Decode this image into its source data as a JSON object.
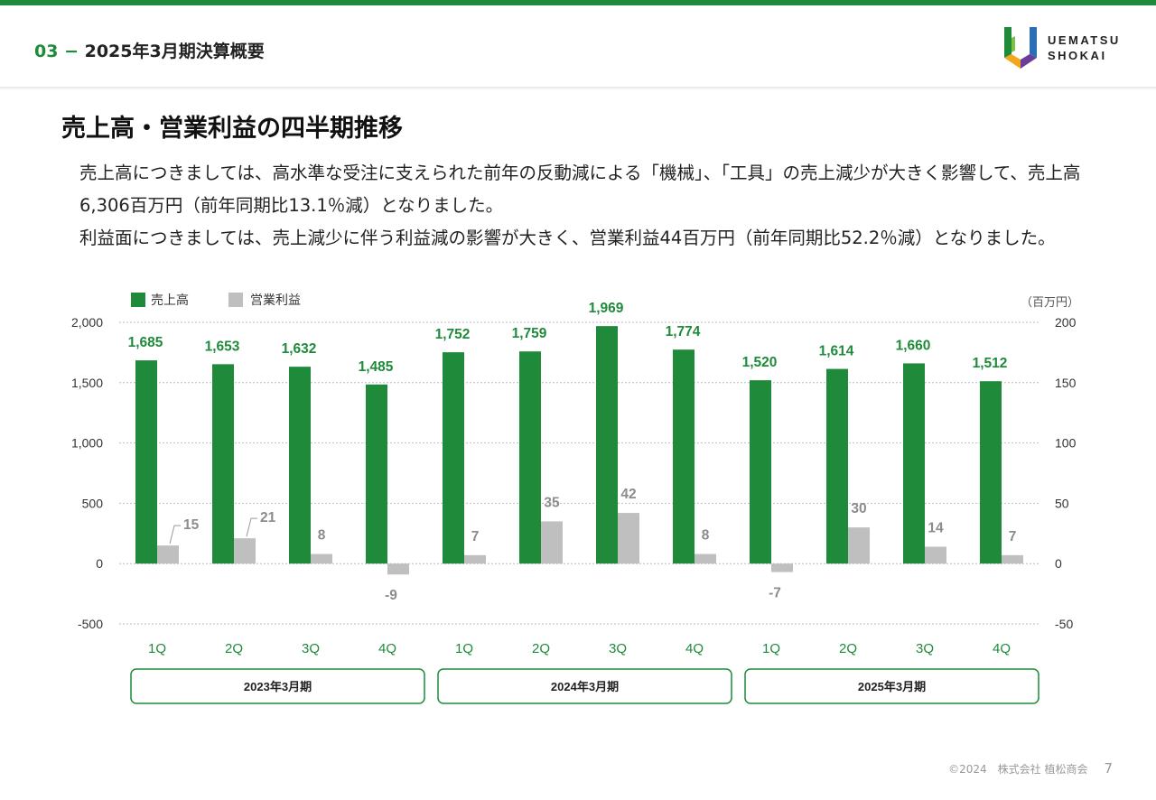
{
  "header": {
    "section_number": "03",
    "section_title": "2025年3月期決算概要",
    "logo_line1": "UEMATSU",
    "logo_line2": "SHOKAI"
  },
  "page_title": "売上高・営業利益の四半期推移",
  "paragraphs": [
    "売上高につきましては、高水準な受注に支えられた前年の反動減による「機械」、「工具」の売上減少が大きく影響して、売上高6,306百万円（前年同期比13.1％減）となりました。",
    "利益面につきましては、売上減少に伴う利益減の影響が大きく、営業利益44百万円（前年同期比52.2％減）となりました。"
  ],
  "chart_data": {
    "type": "bar",
    "unit_label": "（百万円）",
    "categories": [
      "1Q",
      "2Q",
      "3Q",
      "4Q",
      "1Q",
      "2Q",
      "3Q",
      "4Q",
      "1Q",
      "2Q",
      "3Q",
      "4Q"
    ],
    "groups": [
      "2023年3月期",
      "2024年3月期",
      "2025年3月期"
    ],
    "series": [
      {
        "name": "売上高",
        "axis": "left",
        "color": "#1f8a3a",
        "values": [
          1685,
          1653,
          1632,
          1485,
          1752,
          1759,
          1969,
          1774,
          1520,
          1614,
          1660,
          1512
        ],
        "labels": [
          "1,685",
          "1,653",
          "1,632",
          "1,485",
          "1,752",
          "1,759",
          "1,969",
          "1,774",
          "1,520",
          "1,614",
          "1,660",
          "1,512"
        ]
      },
      {
        "name": "営業利益",
        "axis": "right",
        "color": "#bfbfbf",
        "values": [
          15,
          21,
          8,
          -9,
          7,
          35,
          42,
          8,
          -7,
          30,
          14,
          7
        ],
        "labels": [
          "15",
          "21",
          "8",
          "-9",
          "7",
          "35",
          "42",
          "8",
          "-7",
          "30",
          "14",
          "7"
        ]
      }
    ],
    "left_axis": {
      "ylim": [
        -500,
        2000
      ],
      "ticks": [
        "2,000",
        "1,500",
        "1,000",
        "500",
        "0",
        "-500"
      ],
      "tick_values": [
        2000,
        1500,
        1000,
        500,
        0,
        -500
      ]
    },
    "right_axis": {
      "ylim": [
        -50,
        200
      ],
      "ticks": [
        "200",
        "150",
        "100",
        "50",
        "0",
        "-50"
      ],
      "tick_values": [
        200,
        150,
        100,
        50,
        0,
        -50
      ]
    },
    "grid": true,
    "legend": "top-left"
  },
  "footer": {
    "copyright": "©2024　株式会社 植松商会",
    "page_number": "7"
  }
}
